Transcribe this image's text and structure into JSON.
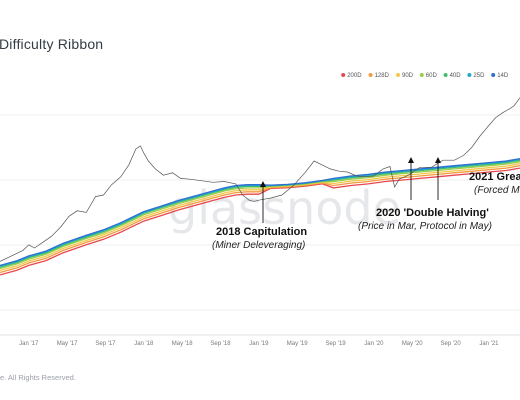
{
  "title": "Difficulty Ribbon",
  "footer": "e. All Rights Reserved.",
  "watermark": "glassnode",
  "chart_data": {
    "type": "line",
    "title": "Difficulty Ribbon",
    "legend_position": "top-right",
    "grid": {
      "horizontal": true,
      "vertical": false
    },
    "x_ticks": [
      "Jan '17",
      "May '17",
      "Sep '17",
      "Jan '18",
      "May '18",
      "Sep '18",
      "Jan '19",
      "May '19",
      "Sep '19",
      "Jan '20",
      "May '20",
      "Sep '20",
      "Jan '21"
    ],
    "x_range": [
      2016.75,
      2021.27
    ],
    "y_range_log": [
      1.85,
      5.2
    ],
    "legend": [
      {
        "name": "200D",
        "color": "#e8474f"
      },
      {
        "name": "128D",
        "color": "#f39a3c"
      },
      {
        "name": "90D",
        "color": "#f2c84b"
      },
      {
        "name": "60D",
        "color": "#9ccc48"
      },
      {
        "name": "40D",
        "color": "#3fbf6a"
      },
      {
        "name": "25D",
        "color": "#22a9c8"
      },
      {
        "name": "14D",
        "color": "#2f6fd1"
      }
    ],
    "price": {
      "x": [
        2016.75,
        2016.85,
        2016.95,
        2017.0,
        2017.05,
        2017.12,
        2017.2,
        2017.28,
        2017.35,
        2017.42,
        2017.5,
        2017.58,
        2017.65,
        2017.72,
        2017.8,
        2017.87,
        2017.93,
        2017.97,
        2018.0,
        2018.04,
        2018.1,
        2018.17,
        2018.25,
        2018.32,
        2018.4,
        2018.5,
        2018.6,
        2018.7,
        2018.8,
        2018.86,
        2018.92,
        2018.96,
        2019.02,
        2019.1,
        2019.2,
        2019.3,
        2019.4,
        2019.48,
        2019.55,
        2019.62,
        2019.7,
        2019.77,
        2019.85,
        2019.92,
        2020.0,
        2020.08,
        2020.14,
        2020.18,
        2020.22,
        2020.3,
        2020.4,
        2020.5,
        2020.6,
        2020.7,
        2020.78,
        2020.85,
        2020.92,
        2021.0,
        2021.06,
        2021.12,
        2021.18,
        2021.22,
        2021.27
      ],
      "y": [
        2.78,
        2.85,
        2.92,
        2.99,
        2.95,
        3.02,
        3.1,
        3.22,
        3.35,
        3.42,
        3.4,
        3.6,
        3.62,
        3.75,
        3.85,
        4.0,
        4.2,
        4.24,
        4.15,
        4.05,
        3.95,
        3.87,
        3.9,
        3.83,
        3.82,
        3.8,
        3.78,
        3.79,
        3.76,
        3.62,
        3.55,
        3.54,
        3.56,
        3.58,
        3.62,
        3.74,
        3.9,
        4.05,
        4.0,
        3.95,
        3.92,
        3.91,
        3.86,
        3.85,
        3.86,
        3.95,
        3.98,
        3.72,
        3.82,
        3.87,
        3.97,
        3.97,
        4.06,
        4.06,
        4.12,
        4.22,
        4.36,
        4.5,
        4.6,
        4.66,
        4.71,
        4.75,
        4.85
      ]
    },
    "ribbon_base": {
      "x": [
        2016.75,
        2016.9,
        2017.0,
        2017.15,
        2017.3,
        2017.5,
        2017.65,
        2017.8,
        2017.9,
        2018.0,
        2018.15,
        2018.3,
        2018.45,
        2018.6,
        2018.7,
        2018.8,
        2018.9,
        2019.0,
        2019.1,
        2019.25,
        2019.4,
        2019.55,
        2019.65,
        2019.8,
        2019.95,
        2020.1,
        2020.25,
        2020.4,
        2020.55,
        2020.7,
        2020.85,
        2021.0,
        2021.15,
        2021.27
      ],
      "y": [
        2.72,
        2.78,
        2.84,
        2.9,
        3.0,
        3.1,
        3.17,
        3.26,
        3.33,
        3.4,
        3.47,
        3.54,
        3.6,
        3.66,
        3.7,
        3.73,
        3.74,
        3.74,
        3.74,
        3.75,
        3.77,
        3.8,
        3.82,
        3.85,
        3.87,
        3.9,
        3.92,
        3.94,
        3.96,
        3.98,
        4.0,
        4.02,
        4.04,
        4.07
      ]
    },
    "annotations": [
      {
        "title": "2018 Capitulation",
        "subtitle": "(Miner Deleveraging)",
        "x": 2018.9
      },
      {
        "title": "2020 'Double Halving'",
        "subtitle": "(Price in Mar, Protocol in May)",
        "x": [
          2020.18,
          2020.38
        ]
      },
      {
        "title": "2021 Grea",
        "subtitle": "(Forced M"
      }
    ]
  }
}
